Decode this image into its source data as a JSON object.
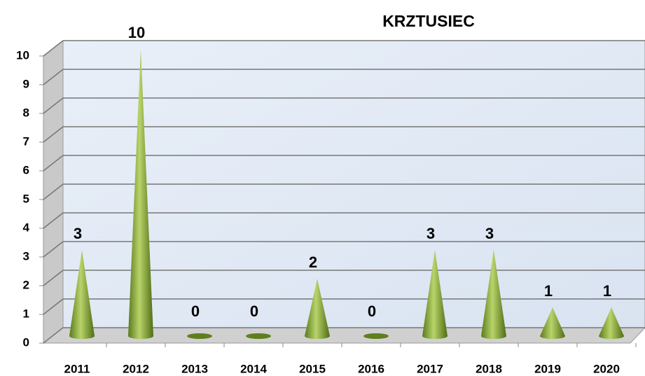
{
  "chart_data": {
    "type": "cone",
    "title": "KRZTUSIEC",
    "categories": [
      "2011",
      "2012",
      "2013",
      "2014",
      "2015",
      "2016",
      "2017",
      "2018",
      "2019",
      "2020"
    ],
    "values": [
      3,
      10,
      0,
      0,
      2,
      0,
      3,
      3,
      1,
      1
    ],
    "color": "#7a9a2e",
    "ylim": [
      0,
      10
    ],
    "yticks": [
      0,
      1,
      2,
      3,
      4,
      5,
      6,
      7,
      8,
      9,
      10
    ],
    "grid": true
  }
}
